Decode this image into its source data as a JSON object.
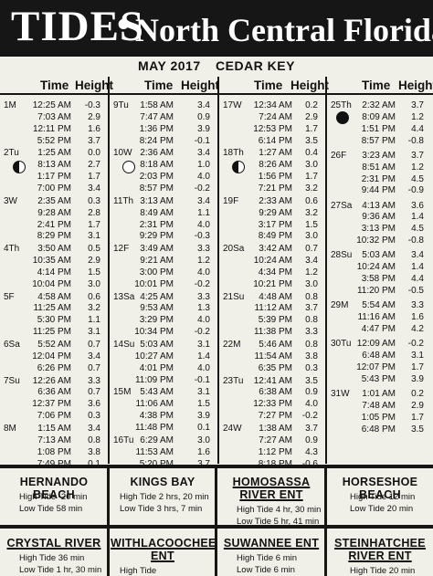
{
  "header": {
    "title_main": "TIDES",
    "title_dot": "•",
    "title_region": "North Central Florida"
  },
  "subtitle": {
    "month": "MAY 2017",
    "location": "CEDAR KEY"
  },
  "column_headers": {
    "time": "Time",
    "height": "Height"
  },
  "columns": [
    {
      "days": [
        {
          "label": "1M",
          "entries": [
            [
              "12:25 AM",
              "-0.3"
            ],
            [
              "7:03 AM",
              "2.9"
            ],
            [
              "12:11 PM",
              "1.6"
            ],
            [
              "5:52 PM",
              "3.7"
            ]
          ]
        },
        {
          "label": "2Tu",
          "moon": "first-quarter-moon-icon",
          "entries": [
            [
              "1:25 AM",
              "0.0"
            ],
            [
              "8:13 AM",
              "2.7"
            ],
            [
              "1:17 PM",
              "1.7"
            ],
            [
              "7:00 PM",
              "3.4"
            ]
          ]
        },
        {
          "label": "3W",
          "entries": [
            [
              "2:35 AM",
              "0.3"
            ],
            [
              "9:28 AM",
              "2.8"
            ],
            [
              "2:41 PM",
              "1.7"
            ],
            [
              "8:29 PM",
              "3.1"
            ]
          ]
        },
        {
          "label": "4Th",
          "entries": [
            [
              "3:50 AM",
              "0.5"
            ],
            [
              "10:35 AM",
              "2.9"
            ],
            [
              "4:14 PM",
              "1.5"
            ],
            [
              "10:04 PM",
              "3.0"
            ]
          ]
        },
        {
          "label": "5F",
          "entries": [
            [
              "4:58 AM",
              "0.6"
            ],
            [
              "11:25 AM",
              "3.2"
            ],
            [
              "5:30 PM",
              "1.1"
            ],
            [
              "11:25 PM",
              "3.1"
            ]
          ]
        },
        {
          "label": "6Sa",
          "entries": [
            [
              "5:52 AM",
              "0.7"
            ],
            [
              "12:04 PM",
              "3.4"
            ],
            [
              "6:26 PM",
              "0.7"
            ]
          ]
        },
        {
          "label": "7Su",
          "entries": [
            [
              "12:26 AM",
              "3.3"
            ],
            [
              "6:36 AM",
              "0.7"
            ],
            [
              "12:37 PM",
              "3.6"
            ],
            [
              "7:06 PM",
              "0.3"
            ]
          ]
        },
        {
          "label": "8M",
          "entries": [
            [
              "1:15 AM",
              "3.4"
            ],
            [
              "7:13 AM",
              "0.8"
            ],
            [
              "1:08 PM",
              "3.8"
            ],
            [
              "7:49 PM",
              "0.1"
            ]
          ]
        }
      ]
    },
    {
      "days": [
        {
          "label": "9Tu",
          "entries": [
            [
              "1:58 AM",
              "3.4"
            ],
            [
              "7:47 AM",
              "0.9"
            ],
            [
              "1:36 PM",
              "3.9"
            ],
            [
              "8:24 PM",
              "-0.1"
            ]
          ]
        },
        {
          "label": "10W",
          "moon": "full-moon-icon",
          "entries": [
            [
              "2:36 AM",
              "3.4"
            ],
            [
              "8:18 AM",
              "1.0"
            ],
            [
              "2:03 PM",
              "4.0"
            ],
            [
              "8:57 PM",
              "-0.2"
            ]
          ]
        },
        {
          "label": "11Th",
          "entries": [
            [
              "3:13 AM",
              "3.4"
            ],
            [
              "8:49 AM",
              "1.1"
            ],
            [
              "2:31 PM",
              "4.0"
            ],
            [
              "9:29 PM",
              "-0.3"
            ]
          ]
        },
        {
          "label": "12F",
          "entries": [
            [
              "3:49 AM",
              "3.3"
            ],
            [
              "9:21 AM",
              "1.2"
            ],
            [
              "3:00 PM",
              "4.0"
            ],
            [
              "10:01 PM",
              "-0.2"
            ]
          ]
        },
        {
          "label": "13Sa",
          "entries": [
            [
              "4:25 AM",
              "3.3"
            ],
            [
              "9:53 AM",
              "1.3"
            ],
            [
              "3:29 PM",
              "4.0"
            ],
            [
              "10:34 PM",
              "-0.2"
            ]
          ]
        },
        {
          "label": "14Su",
          "entries": [
            [
              "5:03 AM",
              "3.1"
            ],
            [
              "10:27 AM",
              "1.4"
            ],
            [
              "4:01 PM",
              "4.0"
            ],
            [
              "11:09 PM",
              "-0.1"
            ]
          ]
        },
        {
          "label": "15M",
          "entries": [
            [
              "5:43 AM",
              "3.1"
            ],
            [
              "11:06 AM",
              "1.5"
            ],
            [
              "4:38 PM",
              "3.9"
            ],
            [
              "11:48 PM",
              "0.1"
            ]
          ]
        },
        {
          "label": "16Tu",
          "entries": [
            [
              "6:29 AM",
              "3.0"
            ],
            [
              "11:53 AM",
              "1.6"
            ],
            [
              "5:20 PM",
              "3.7"
            ]
          ]
        }
      ]
    },
    {
      "days": [
        {
          "label": "17W",
          "entries": [
            [
              "12:34 AM",
              "0.2"
            ],
            [
              "7:24 AM",
              "2.9"
            ],
            [
              "12:53 PM",
              "1.7"
            ],
            [
              "6:14 PM",
              "3.5"
            ]
          ]
        },
        {
          "label": "18Th",
          "moon": "last-quarter-moon-icon",
          "entries": [
            [
              "1:27 AM",
              "0.4"
            ],
            [
              "8:26 AM",
              "3.0"
            ],
            [
              "1:56 PM",
              "1.7"
            ],
            [
              "7:21 PM",
              "3.2"
            ]
          ]
        },
        {
          "label": "19F",
          "entries": [
            [
              "2:33 AM",
              "0.6"
            ],
            [
              "9:29 AM",
              "3.2"
            ],
            [
              "3:17 PM",
              "1.5"
            ],
            [
              "8:49 PM",
              "3.0"
            ]
          ]
        },
        {
          "label": "20Sa",
          "entries": [
            [
              "3:42 AM",
              "0.7"
            ],
            [
              "10:24 AM",
              "3.4"
            ],
            [
              "4:34 PM",
              "1.2"
            ],
            [
              "10:21 PM",
              "3.0"
            ]
          ]
        },
        {
          "label": "21Su",
          "entries": [
            [
              "4:48 AM",
              "0.8"
            ],
            [
              "11:12 AM",
              "3.7"
            ],
            [
              "5:39 PM",
              "0.8"
            ],
            [
              "11:38 PM",
              "3.3"
            ]
          ]
        },
        {
          "label": "22M",
          "entries": [
            [
              "5:46 AM",
              "0.8"
            ],
            [
              "11:54 AM",
              "3.8"
            ],
            [
              "6:35 PM",
              "0.3"
            ]
          ]
        },
        {
          "label": "23Tu",
          "entries": [
            [
              "12:41 AM",
              "3.5"
            ],
            [
              "6:38 AM",
              "0.9"
            ],
            [
              "12:33 PM",
              "4.0"
            ],
            [
              "7:27 PM",
              "-0.2"
            ]
          ]
        },
        {
          "label": "24W",
          "entries": [
            [
              "1:38 AM",
              "3.7"
            ],
            [
              "7:27 AM",
              "0.9"
            ],
            [
              "1:12 PM",
              "4.3"
            ],
            [
              "8:18 PM",
              "-0.6"
            ]
          ]
        }
      ]
    },
    {
      "days": [
        {
          "label": "25Th",
          "moon": "new-moon-icon",
          "entries": [
            [
              "2:32 AM",
              "3.7"
            ],
            [
              "8:09 AM",
              "1.2"
            ],
            [
              "1:51 PM",
              "4.4"
            ],
            [
              "8:57 PM",
              "-0.8"
            ]
          ]
        },
        {
          "label": "26F",
          "entries": [
            [
              "3:23 AM",
              "3.7"
            ],
            [
              "8:51 AM",
              "1.2"
            ],
            [
              "2:31 PM",
              "4.5"
            ],
            [
              "9:44 PM",
              "-0.9"
            ]
          ]
        },
        {
          "label": "27Sa",
          "entries": [
            [
              "4:13 AM",
              "3.6"
            ],
            [
              "9:36 AM",
              "1.4"
            ],
            [
              "3:13 PM",
              "4.5"
            ],
            [
              "10:32 PM",
              "-0.8"
            ]
          ]
        },
        {
          "label": "28Su",
          "entries": [
            [
              "5:03 AM",
              "3.4"
            ],
            [
              "10:24 AM",
              "1.4"
            ],
            [
              "3:58 PM",
              "4.4"
            ],
            [
              "11:20 PM",
              "-0.5"
            ]
          ]
        },
        {
          "label": "29M",
          "entries": [
            [
              "5:54 AM",
              "3.3"
            ],
            [
              "11:16 AM",
              "1.6"
            ],
            [
              "4:47 PM",
              "4.2"
            ]
          ]
        },
        {
          "label": "30Tu",
          "entries": [
            [
              "12:09 AM",
              "-0.2"
            ],
            [
              "6:48 AM",
              "3.1"
            ],
            [
              "12:07 PM",
              "1.7"
            ],
            [
              "5:43 PM",
              "3.9"
            ]
          ]
        },
        {
          "label": "31W",
          "entries": [
            [
              "1:01 AM",
              "0.2"
            ],
            [
              "7:48 AM",
              "2.9"
            ],
            [
              "1:05 PM",
              "1.7"
            ],
            [
              "6:48 PM",
              "3.5"
            ]
          ]
        }
      ]
    }
  ],
  "corrections": [
    {
      "name": [
        "HERNANDO BEACH"
      ],
      "lines": [
        [
          "High Tide",
          "-20 min"
        ],
        [
          "Low Tide",
          "58 min"
        ]
      ]
    },
    {
      "name": [
        "KINGS BAY"
      ],
      "lines": [
        [
          "High Tide",
          "2 hrs, 20 min"
        ],
        [
          "Low Tide",
          "3 hrs, 7 min"
        ]
      ]
    },
    {
      "name": [
        "HOMOSASSA",
        "RIVER ENT"
      ],
      "lines": [
        [
          "High Tide",
          "4 hr, 30 min"
        ],
        [
          "Low Tide",
          "5 hr, 41 min"
        ]
      ]
    },
    {
      "name": [
        "HORSESHOE BEACH"
      ],
      "lines": [
        [
          "High Tide",
          "12 min"
        ],
        [
          "Low Tide",
          "20 min"
        ]
      ]
    },
    {
      "name": [
        "CRYSTAL RIVER"
      ],
      "lines": [
        [
          "High Tide",
          "36 min"
        ],
        [
          "Low Tide",
          "1 hr, 30 min"
        ]
      ]
    },
    {
      "name": [
        "WITHLACOOCHEE",
        "ENT"
      ],
      "lines": [
        [
          "High Tide",
          ""
        ]
      ]
    },
    {
      "name": [
        "SUWANNEE ENT"
      ],
      "lines": [
        [
          "High Tide",
          "6 min"
        ],
        [
          "Low Tide",
          "6 min"
        ]
      ]
    },
    {
      "name": [
        "STEINHATCHEE",
        "RIVER ENT"
      ],
      "lines": [
        [
          "High Tide",
          "20 min"
        ]
      ]
    }
  ]
}
